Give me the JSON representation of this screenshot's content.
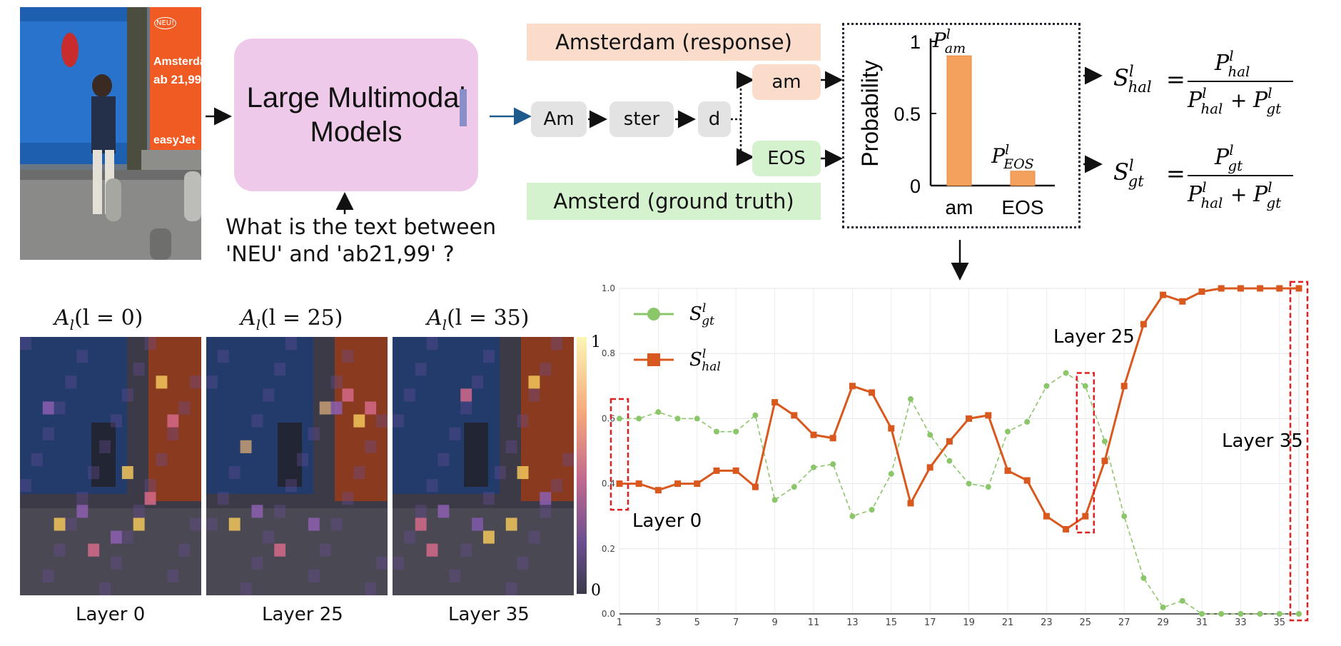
{
  "input_image": {
    "sign_badge": "NEU!",
    "sign_word": "Amsterdam",
    "sign_price": "ab 21,99",
    "sign_brand": "easyJet"
  },
  "model_box": {
    "line1": "Large Multimodal",
    "line2": "Models"
  },
  "question": {
    "line1": "What is the text between",
    "line2": "'NEU' and 'ab21,99' ?"
  },
  "response_banner": "Amsterdam (response)",
  "ground_truth_banner": "Amsterd (ground truth)",
  "tokens": [
    "Am",
    "ster",
    "d"
  ],
  "next_tokens": {
    "hal": "am",
    "gt": "EOS"
  },
  "prob_chart": {
    "ylabel": "Probability",
    "yticks": [
      "1",
      "0.5",
      "0"
    ],
    "categories": [
      "am",
      "EOS"
    ],
    "values": [
      0.9,
      0.1
    ],
    "bar_labels": [
      "P",
      "P"
    ],
    "bar_label_sup": [
      "l",
      "l"
    ],
    "bar_label_sub": [
      "am",
      "EOS"
    ],
    "color": "#f4a15d"
  },
  "formulas": {
    "hal": {
      "lhs": "S",
      "lhs_sub": "hal",
      "sup": "l",
      "num": "P",
      "num_sub": "hal",
      "den_a": "P",
      "den_a_sub": "hal",
      "den_b": "P",
      "den_b_sub": "gt",
      "plus": "+",
      "eq": "="
    },
    "gt": {
      "lhs": "S",
      "lhs_sub": "gt",
      "sup": "l",
      "num": "P",
      "num_sub": "gt",
      "den_a": "P",
      "den_a_sub": "hal",
      "den_b": "P",
      "den_b_sub": "gt",
      "plus": "+",
      "eq": "="
    }
  },
  "heatmaps": [
    {
      "title": "A",
      "title_sub": "l",
      "title_arg": "(l = 0)",
      "caption": "Layer 0"
    },
    {
      "title": "A",
      "title_sub": "l",
      "title_arg": "(l = 25)",
      "caption": "Layer 25"
    },
    {
      "title": "A",
      "title_sub": "l",
      "title_arg": "(l = 35)",
      "caption": "Layer 35"
    }
  ],
  "colorbar": {
    "max": "1",
    "min": "0"
  },
  "chart_data": {
    "type": "line",
    "x": [
      1,
      2,
      3,
      4,
      5,
      6,
      7,
      8,
      9,
      10,
      11,
      12,
      13,
      14,
      15,
      16,
      17,
      18,
      19,
      20,
      21,
      22,
      23,
      24,
      25,
      26,
      27,
      28,
      29,
      30,
      31,
      32,
      33,
      34,
      35,
      36
    ],
    "xticks": [
      "1",
      "3",
      "5",
      "7",
      "9",
      "11",
      "13",
      "15",
      "17",
      "19",
      "21",
      "23",
      "25",
      "27",
      "29",
      "31",
      "33",
      "35"
    ],
    "yticks": [
      "0.0",
      "0.2",
      "0.4",
      "0.6",
      "0.8",
      "1.0"
    ],
    "ylim": [
      0,
      1
    ],
    "series": [
      {
        "name": "S",
        "name_sub": "gt",
        "name_sup": "l",
        "color": "#8cc66a",
        "values": [
          0.6,
          0.6,
          0.62,
          0.6,
          0.6,
          0.56,
          0.56,
          0.61,
          0.35,
          0.39,
          0.45,
          0.46,
          0.3,
          0.32,
          0.43,
          0.66,
          0.55,
          0.47,
          0.4,
          0.39,
          0.56,
          0.59,
          0.7,
          0.74,
          0.7,
          0.53,
          0.3,
          0.11,
          0.02,
          0.04,
          0.0,
          0.0,
          0.0,
          0.0,
          0.0,
          0.0
        ]
      },
      {
        "name": "S",
        "name_sub": "hal",
        "name_sup": "l",
        "color": "#d8581e",
        "values": [
          0.4,
          0.4,
          0.38,
          0.4,
          0.4,
          0.44,
          0.44,
          0.39,
          0.65,
          0.61,
          0.55,
          0.54,
          0.7,
          0.68,
          0.57,
          0.34,
          0.45,
          0.53,
          0.6,
          0.61,
          0.44,
          0.41,
          0.3,
          0.26,
          0.3,
          0.47,
          0.7,
          0.89,
          0.98,
          0.96,
          0.99,
          1.0,
          1.0,
          1.0,
          1.0,
          1.0
        ]
      }
    ],
    "annotations": [
      "Layer 0",
      "Layer 25",
      "Layer 35"
    ]
  }
}
